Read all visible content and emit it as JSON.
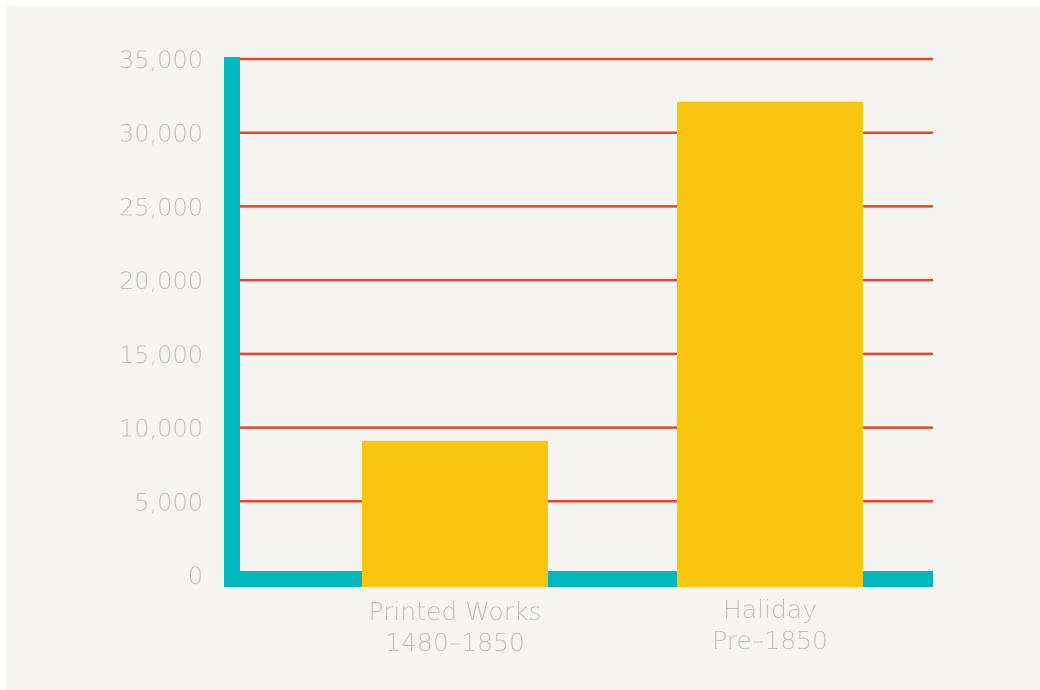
{
  "chart_data": {
    "type": "bar",
    "categories": [
      [
        "Printed Works",
        "1480–1850"
      ],
      [
        "Haliday",
        "Pre–1850"
      ]
    ],
    "values": [
      9100,
      32100
    ],
    "ylim": [
      0,
      35000
    ],
    "yticks": [
      0,
      5000,
      10000,
      15000,
      20000,
      25000,
      30000,
      35000
    ],
    "ytick_labels": [
      "0",
      "5,000",
      "10,000",
      "15,000",
      "20,000",
      "25,000",
      "30,000",
      "35,000"
    ],
    "grid": true,
    "title": "",
    "xlabel": "",
    "ylabel": "",
    "colors": {
      "bar": "#f9c50f",
      "grid": "#e8432b",
      "axis": "#00b8bd",
      "label": "#c2c2c2",
      "background": "#f7f5f1"
    }
  }
}
